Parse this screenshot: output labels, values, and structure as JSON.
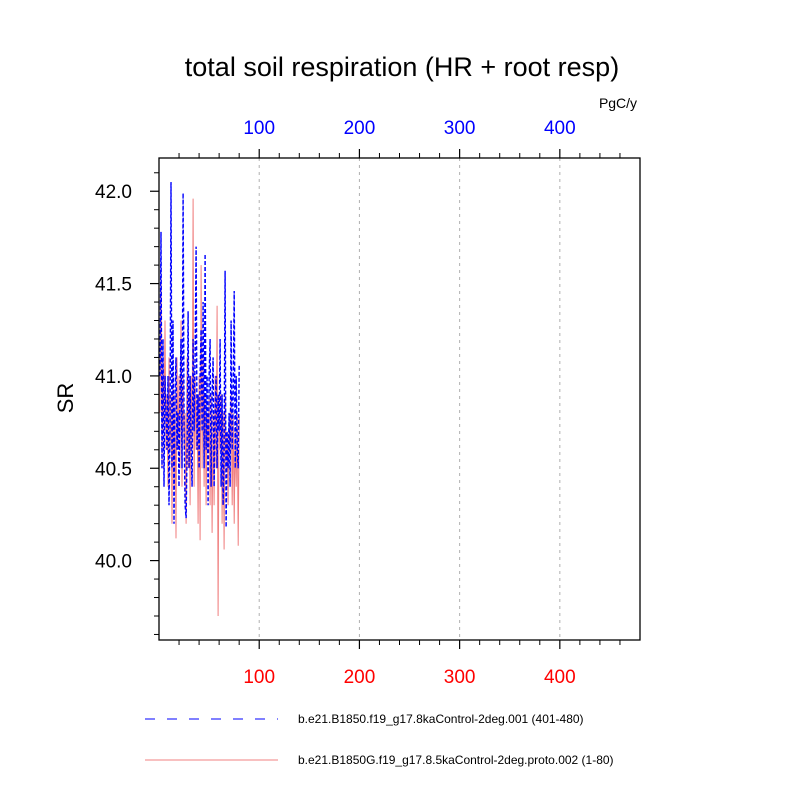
{
  "chart_data": {
    "type": "line",
    "title": "total soil respiration (HR + root resp)",
    "ylabel": "SR",
    "top_axis_units": "PgC/y",
    "xlim": [
      0,
      480
    ],
    "ylim": [
      39.57,
      42.18
    ],
    "x_ticks": [
      "100",
      "200",
      "300",
      "400"
    ],
    "y_ticks": [
      "40.0",
      "40.5",
      "41.0",
      "41.5",
      "42.0"
    ],
    "grid": "vertical dashed at x ticks",
    "legend_position": "bottom",
    "series": [
      {
        "name": "b.e21.B1850.f19_g17.8kaControl-2deg.001 (401-480)",
        "color": "#0000ff",
        "style": "dashed",
        "x": [
          1,
          2,
          3,
          4,
          5,
          6,
          7,
          8,
          9,
          10,
          11,
          12,
          13,
          14,
          15,
          16,
          17,
          18,
          19,
          20,
          21,
          22,
          23,
          24,
          25,
          26,
          27,
          28,
          29,
          30,
          31,
          32,
          33,
          34,
          35,
          36,
          37,
          38,
          39,
          40,
          41,
          42,
          43,
          44,
          45,
          46,
          47,
          48,
          49,
          50,
          51,
          52,
          53,
          54,
          55,
          56,
          57,
          58,
          59,
          60,
          61,
          62,
          63,
          64,
          65,
          66,
          67,
          68,
          69,
          70,
          71,
          72,
          73,
          74,
          75,
          76,
          77,
          78,
          79,
          80
        ],
        "values": [
          41.0,
          41.78,
          40.5,
          41.2,
          40.4,
          41.0,
          40.8,
          40.6,
          41.0,
          40.3,
          40.7,
          42.05,
          40.5,
          41.3,
          40.2,
          40.9,
          41.1,
          40.6,
          40.8,
          40.4,
          40.9,
          41.2,
          40.5,
          41.99,
          40.7,
          40.3,
          40.23,
          40.6,
          41.35,
          40.5,
          41.0,
          40.6,
          40.4,
          41.2,
          40.7,
          41.1,
          41.7,
          40.6,
          40.9,
          40.5,
          41.0,
          41.25,
          40.7,
          41.4,
          40.5,
          41.66,
          40.6,
          41.0,
          40.3,
          41.0,
          41.2,
          40.4,
          40.9,
          41.1,
          40.4,
          40.8,
          41.0,
          40.5,
          40.9,
          40.7,
          41.2,
          40.4,
          40.9,
          40.3,
          40.6,
          41.57,
          40.18,
          40.7,
          40.5,
          40.8,
          40.4,
          41.3,
          40.6,
          40.9,
          41.46,
          40.5,
          41.0,
          40.6,
          40.5,
          41.06
        ]
      },
      {
        "name": "b.e21.B1850G.f19_g17.8.5kaControl-2deg.proto.002 (1-80)",
        "color": "#f08080",
        "style": "solid",
        "x": [
          1,
          2,
          3,
          4,
          5,
          6,
          7,
          8,
          9,
          10,
          11,
          12,
          13,
          14,
          15,
          16,
          17,
          18,
          19,
          20,
          21,
          22,
          23,
          24,
          25,
          26,
          27,
          28,
          29,
          30,
          31,
          32,
          33,
          34,
          35,
          36,
          37,
          38,
          39,
          40,
          41,
          42,
          43,
          44,
          45,
          46,
          47,
          48,
          49,
          50,
          51,
          52,
          53,
          54,
          55,
          56,
          57,
          58,
          59,
          60,
          61,
          62,
          63,
          64,
          65,
          66,
          67,
          68,
          69,
          70,
          71,
          72,
          73,
          74,
          75,
          76,
          77,
          78,
          79,
          80
        ],
        "values": [
          40.8,
          41.55,
          40.5,
          41.1,
          40.7,
          41.3,
          40.6,
          40.9,
          40.4,
          41.1,
          40.6,
          40.9,
          40.2,
          41.0,
          40.4,
          40.9,
          40.12,
          41.1,
          40.6,
          41.0,
          40.5,
          41.3,
          40.4,
          41.0,
          40.6,
          40.8,
          40.2,
          41.1,
          40.5,
          40.9,
          40.3,
          41.0,
          40.6,
          41.96,
          40.4,
          41.0,
          40.6,
          40.9,
          40.2,
          41.0,
          40.11,
          41.6,
          40.5,
          41.1,
          40.4,
          40.9,
          40.3,
          40.8,
          40.6,
          40.9,
          40.3,
          40.9,
          40.15,
          40.8,
          40.3,
          41.0,
          40.5,
          41.38,
          39.7,
          40.9,
          40.6,
          40.9,
          40.2,
          40.8,
          40.06,
          40.9,
          40.5,
          40.7,
          40.3,
          40.8,
          40.6,
          40.9,
          40.3,
          40.8,
          40.2,
          40.7,
          40.4,
          40.8,
          40.08,
          40.78
        ]
      }
    ]
  }
}
